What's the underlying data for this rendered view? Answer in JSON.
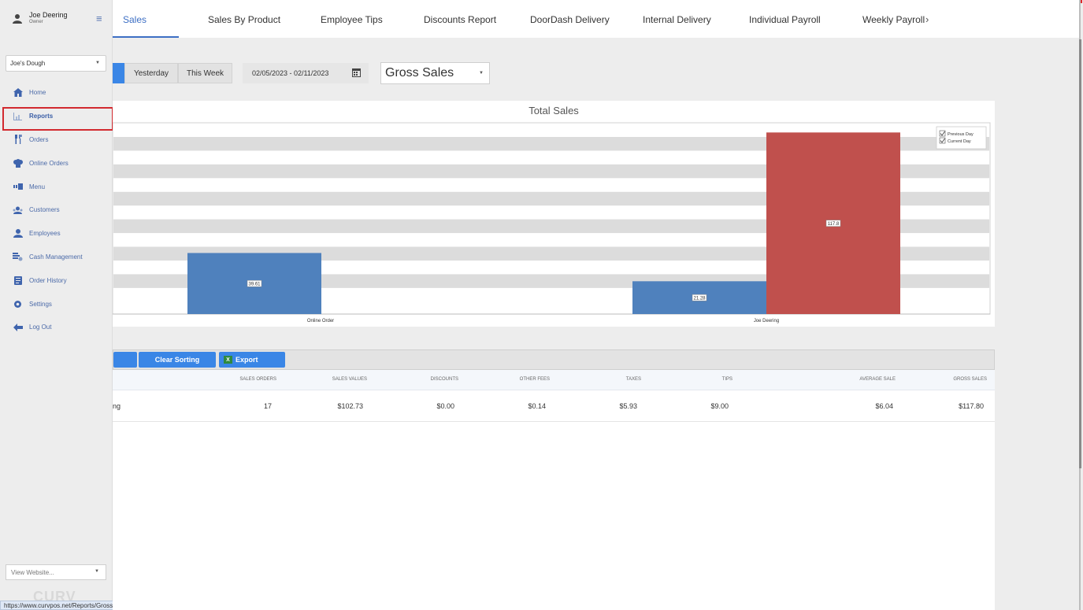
{
  "user": {
    "name": "Joe Deering",
    "role": "Owner"
  },
  "store": {
    "selected": "Joe's Dough"
  },
  "nav": [
    {
      "label": "Home",
      "icon": "home-icon"
    },
    {
      "label": "Reports",
      "icon": "bar-chart-icon",
      "active": true
    },
    {
      "label": "Orders",
      "icon": "utensils-icon"
    },
    {
      "label": "Online Orders",
      "icon": "chef-hat-icon"
    },
    {
      "label": "Menu",
      "icon": "menu-grid-icon"
    },
    {
      "label": "Customers",
      "icon": "customers-icon"
    },
    {
      "label": "Employees",
      "icon": "employee-icon"
    },
    {
      "label": "Cash Management",
      "icon": "cash-icon"
    },
    {
      "label": "Order History",
      "icon": "history-icon"
    },
    {
      "label": "Settings",
      "icon": "gear-icon"
    },
    {
      "label": "Log Out",
      "icon": "arrow-left-icon"
    }
  ],
  "view_website": {
    "placeholder": "View Website..."
  },
  "status_url": "https://www.curvpos.net/Reports/GrossSales",
  "tabs": [
    {
      "label": "Sales",
      "active": true
    },
    {
      "label": "Sales By Product"
    },
    {
      "label": "Employee Tips"
    },
    {
      "label": "Discounts Report"
    },
    {
      "label": "DoorDash Delivery"
    },
    {
      "label": "Internal Delivery"
    },
    {
      "label": "Individual Payroll"
    },
    {
      "label": "Weekly Payroll"
    }
  ],
  "filters": {
    "yesterday": "Yesterday",
    "this_week": "This Week",
    "date_range": "02/05/2023 - 02/11/2023",
    "metric": "Gross Sales"
  },
  "chart_data": {
    "type": "bar",
    "title": "Total Sales",
    "categories": [
      "Online Order",
      "Joe Deering"
    ],
    "series": [
      {
        "name": "Previous Day",
        "color": "#4f81bd",
        "values": [
          39.61,
          21.28
        ],
        "labels": [
          "39.61",
          "21.28"
        ]
      },
      {
        "name": "Current Day",
        "color": "#c0504d",
        "values": [
          null,
          117.8
        ],
        "labels": [
          "",
          "117.8"
        ]
      }
    ],
    "legend_position": "top-right",
    "grid": true,
    "ylim": [
      0,
      120
    ]
  },
  "toolbar": {
    "clear_sorting": "Clear Sorting",
    "export": "Export"
  },
  "table": {
    "columns": [
      "SALES ORDERS",
      "SALES VALUES",
      "DISCOUNTS",
      "OTHER FEES",
      "TAXES",
      "TIPS",
      "AVERAGE SALE",
      "GROSS SALES"
    ],
    "rows": [
      {
        "name": "ng",
        "sales_orders": "17",
        "sales_values": "$102.73",
        "discounts": "$0.00",
        "other_fees": "$0.14",
        "taxes": "$5.93",
        "tips": "$9.00",
        "average_sale": "$6.04",
        "gross_sales": "$117.80"
      }
    ]
  }
}
